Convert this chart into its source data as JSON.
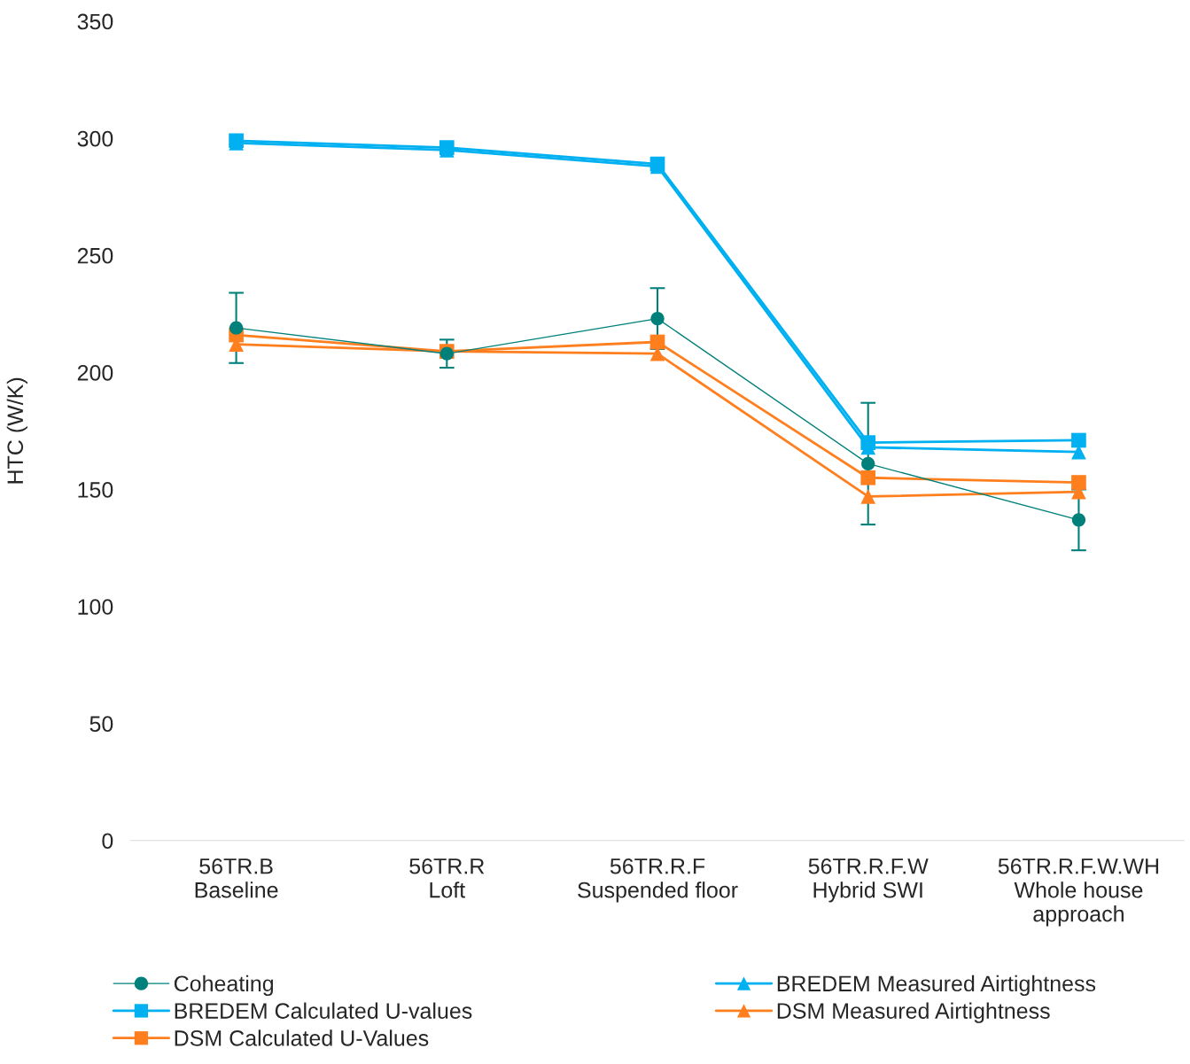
{
  "chart_data": {
    "type": "line",
    "ylabel": "HTC (W/K)",
    "categories": [
      "56TR.B\nBaseline",
      "56TR.R\nLoft",
      "56TR.R.F\nSuspended floor",
      "56TR.R.F.W\nHybrid SWI",
      "56TR.R.F.W.WH\nWhole house\napproach"
    ],
    "series": [
      {
        "name": "Coheating",
        "color": "#00807a",
        "marker": "circle",
        "values": [
          219,
          208,
          223,
          161,
          137
        ],
        "errors": [
          15,
          6,
          13,
          26,
          13
        ]
      },
      {
        "name": "BREDEM Measured Airtightness",
        "color": "#00b0f0",
        "marker": "triangle",
        "values": [
          298,
          295,
          288,
          168,
          166
        ]
      },
      {
        "name": "BREDEM Calculated U-values",
        "color": "#00b0f0",
        "marker": "square",
        "values": [
          299,
          296,
          289,
          170,
          171
        ]
      },
      {
        "name": "DSM Measured Airtightness",
        "color": "#ff7f1f",
        "marker": "triangle",
        "values": [
          212,
          209,
          208,
          147,
          149
        ]
      },
      {
        "name": "DSM Calculated U-Values",
        "color": "#ff7f1f",
        "marker": "square",
        "values": [
          216,
          209,
          213,
          155,
          153
        ]
      }
    ],
    "ylim": [
      0,
      350
    ],
    "yticks": [
      0,
      50,
      100,
      150,
      200,
      250,
      300,
      350
    ],
    "grid": false,
    "legend": "bottom"
  }
}
